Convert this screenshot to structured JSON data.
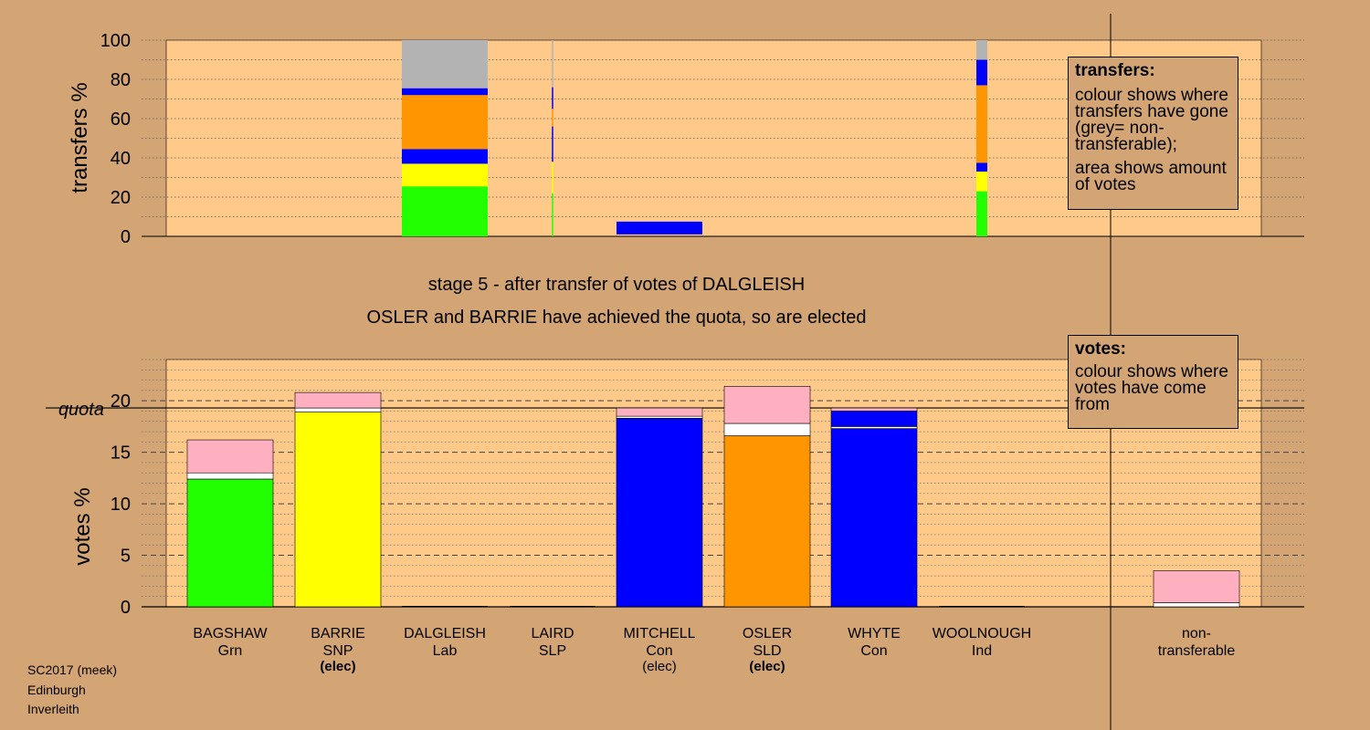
{
  "stage_text": "stage 5 - after transfer of votes of DALGLEISH",
  "elected_text": "OSLER and BARRIE have achieved the quota, so are elected",
  "transfers_legend": {
    "title": "transfers:",
    "line1": "colour shows where transfers have gone (grey= non-transferable);",
    "line2": "area shows amount of votes"
  },
  "votes_legend": {
    "title": "votes:",
    "line1": "colour shows where votes have come from"
  },
  "footer": {
    "line1": "SC2017 (meek)",
    "line2": "Edinburgh",
    "line3": "Inverleith"
  },
  "colors": {
    "background": "#d4a574",
    "plot_bg": "#ffc98a",
    "Grn": "#22ff00",
    "SNP": "#ffff00",
    "Lab": "#ff0000",
    "Con": "#0000ff",
    "SLD": "#ff9500",
    "nontransferable": "#b3b3b3",
    "previous_stages": "#ffb0c0"
  },
  "chart_data": [
    {
      "type": "bar",
      "ylabel": "transfers %",
      "ylim": [
        0,
        100
      ],
      "yticks": [
        0,
        20,
        40,
        60,
        80,
        100
      ],
      "categories": [
        "BAGSHAW",
        "BARRIE",
        "DALGLEISH",
        "LAIRD",
        "MITCHELL",
        "OSLER",
        "WHYTE",
        "WOOLNOUGH"
      ],
      "bars": [
        {
          "candidate": "DALGLEISH",
          "width": "full",
          "segments": [
            {
              "to": "Grn",
              "from": 0,
              "to_value": 25.5
            },
            {
              "to": "SNP",
              "from": 25.5,
              "to_value": 37
            },
            {
              "to": "Con",
              "from": 37,
              "to_value": 44.5
            },
            {
              "to": "SLD",
              "from": 44.5,
              "to_value": 72
            },
            {
              "to": "Con",
              "from": 72,
              "to_value": 75.5
            },
            {
              "to": "nontransferable",
              "from": 75.5,
              "to_value": 100
            }
          ]
        },
        {
          "candidate": "LAIRD",
          "width": "thin",
          "segments": [
            {
              "to": "Grn",
              "from": 0,
              "to_value": 22
            },
            {
              "to": "SNP",
              "from": 22,
              "to_value": 38
            },
            {
              "to": "Con",
              "from": 38,
              "to_value": 56
            },
            {
              "to": "SLD",
              "from": 56,
              "to_value": 65
            },
            {
              "to": "Con",
              "from": 65,
              "to_value": 76
            },
            {
              "to": "nontransferable",
              "from": 76,
              "to_value": 100
            }
          ]
        },
        {
          "candidate": "MITCHELL",
          "width": "full",
          "segments": [
            {
              "to": "Con",
              "from": 1,
              "to_value": 7.5
            }
          ]
        },
        {
          "candidate": "WOOLNOUGH",
          "width": "narrow",
          "segments": [
            {
              "to": "Grn",
              "from": 0,
              "to_value": 23
            },
            {
              "to": "SNP",
              "from": 23,
              "to_value": 33
            },
            {
              "to": "Con",
              "from": 33,
              "to_value": 37.5
            },
            {
              "to": "SLD",
              "from": 37.5,
              "to_value": 77
            },
            {
              "to": "Con",
              "from": 77,
              "to_value": 90
            },
            {
              "to": "nontransferable",
              "from": 90,
              "to_value": 100
            }
          ]
        }
      ]
    },
    {
      "type": "bar",
      "ylabel": "votes %",
      "ylim": [
        0,
        24
      ],
      "yticks": [
        0,
        5,
        10,
        15,
        20
      ],
      "quota": 19.3,
      "quota_label": "quota",
      "candidates": [
        {
          "name": "BAGSHAW",
          "party": "Grn",
          "status": "",
          "first_pref": 12.4,
          "white_to": 13.0,
          "total": 16.2
        },
        {
          "name": "BARRIE",
          "party": "SNP",
          "status": "(elec)",
          "status_bold": true,
          "first_pref": 18.9,
          "white_to": 19.3,
          "total": 20.8
        },
        {
          "name": "DALGLEISH",
          "party": "Lab",
          "status": "",
          "first_pref": 0,
          "white_to": 0,
          "total": 0
        },
        {
          "name": "LAIRD",
          "party": "SLP",
          "status": "",
          "first_pref": 0,
          "white_to": 0,
          "total": 0
        },
        {
          "name": "MITCHELL",
          "party": "Con",
          "status": "(elec)",
          "status_bold": false,
          "first_pref": 18.3,
          "white_to": 18.5,
          "total": 19.3
        },
        {
          "name": "OSLER",
          "party": "SLD",
          "status": "(elec)",
          "status_bold": true,
          "first_pref": 16.6,
          "white_to": 17.8,
          "total": 21.4
        },
        {
          "name": "WHYTE",
          "party": "Con",
          "status": "",
          "first_pref": 17.3,
          "white_to": 17.5,
          "total": 19.3,
          "bands": [
            {
              "color": "Con",
              "from": 17.5,
              "to": 19.0
            },
            {
              "color": "previous_stages",
              "from": 19.0,
              "to": 19.3
            }
          ]
        },
        {
          "name": "WOOLNOUGH",
          "party": "Ind",
          "status": "",
          "first_pref": 0,
          "white_to": 0,
          "total": 0
        }
      ],
      "nontransferable": {
        "label_line1": "non-",
        "label_line2": "transferable",
        "white_to": 0.4,
        "total": 3.5
      }
    }
  ]
}
